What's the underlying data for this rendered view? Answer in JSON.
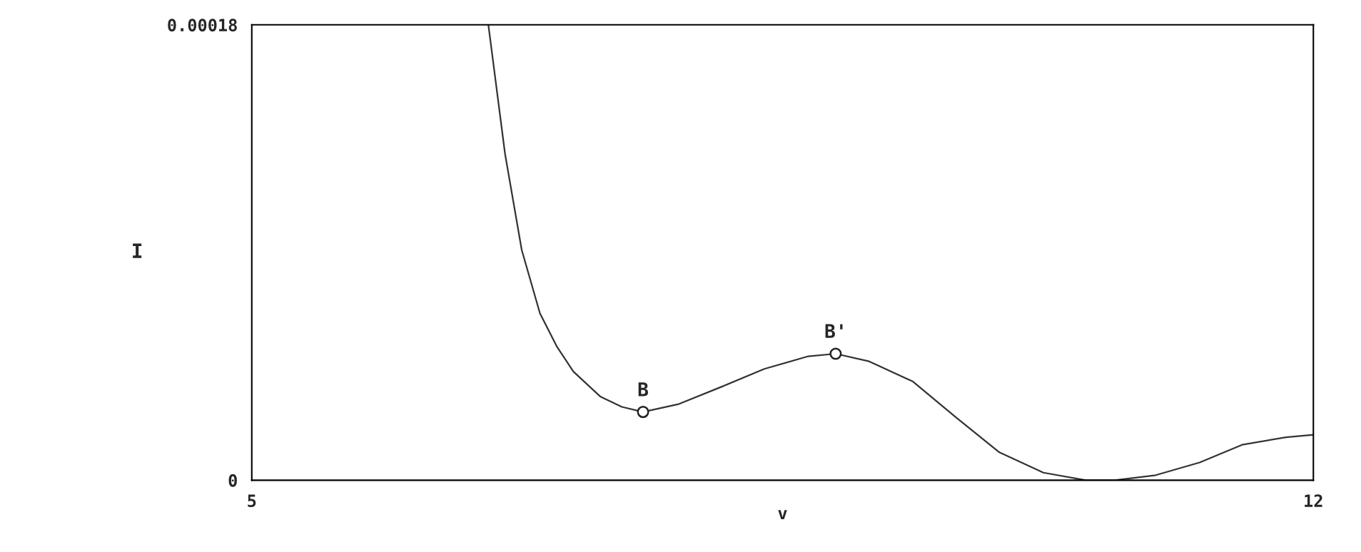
{
  "chart_data": {
    "type": "line",
    "xlabel": "v",
    "ylabel": "I",
    "xlim": [
      5,
      12
    ],
    "ylim": [
      0,
      0.00018
    ],
    "xticks": [
      5,
      12
    ],
    "yticks": [
      0,
      0.00018
    ],
    "grid": false,
    "series": [
      {
        "color": "#333333",
        "marker": "none",
        "x": [
          6.56,
          6.67,
          6.78,
          6.9,
          7.01,
          7.12,
          7.3,
          7.44,
          7.58,
          7.81,
          8.1,
          8.38,
          8.67,
          8.85,
          9.07,
          9.36,
          9.64,
          9.93,
          10.22,
          10.5,
          10.69,
          10.96,
          11.25,
          11.53,
          11.82,
          12
        ],
        "values": [
          0.00018,
          0.000129,
          9.1e-05,
          6.6e-05,
          5.3e-05,
          4.3e-05,
          3.3e-05,
          2.9e-05,
          2.7e-05,
          3e-05,
          3.7e-05,
          4.4e-05,
          4.9e-05,
          5e-05,
          4.7e-05,
          3.9e-05,
          2.5e-05,
          1.1e-05,
          3e-06,
          0.0,
          0.0,
          2e-06,
          7e-06,
          1.4e-05,
          1.7e-05,
          1.8e-05
        ]
      },
      {
        "type": "scatter",
        "color": "#222222",
        "marker": "circle",
        "x": [
          7.58,
          8.85
        ],
        "values": [
          2.7e-05,
          5e-05
        ]
      }
    ],
    "annotations": [
      {
        "text": "B",
        "x": 7.58,
        "y": 2.7e-05
      },
      {
        "text": "B'",
        "x": 8.85,
        "y": 5e-05
      }
    ]
  }
}
